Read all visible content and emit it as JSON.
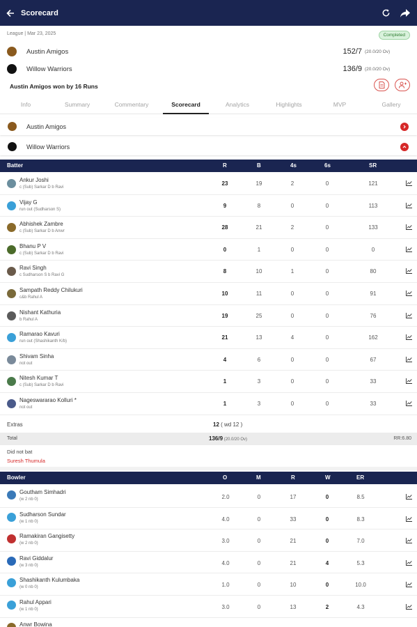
{
  "appbar": {
    "title": "Scorecard",
    "back_icon": "arrow-left-icon",
    "refresh_icon": "refresh-icon",
    "share_icon": "share-icon"
  },
  "match": {
    "meta": "League | Mar 23, 2025",
    "status": "Completed",
    "teams": [
      {
        "name": "Austin Amigos",
        "score": "152/7",
        "overs": "(20.0/20 Ov)",
        "logo_color": "#8a5a1e"
      },
      {
        "name": "Willow Warriors",
        "score": "136/9",
        "overs": "(20.0/20 Ov)",
        "logo_color": "#111111"
      }
    ],
    "result": "Austin Amigos won by 16 Runs"
  },
  "tabs": [
    "Info",
    "Summary",
    "Commentary",
    "Scorecard",
    "Analytics",
    "Highlights",
    "MVP",
    "Gallery"
  ],
  "active_tab": "Scorecard",
  "innings": [
    {
      "name": "Austin Amigos",
      "state": "collapsed"
    },
    {
      "name": "Willow Warriors",
      "state": "expanded"
    }
  ],
  "batting": {
    "headers": {
      "batter": "Batter",
      "r": "R",
      "b": "B",
      "fours": "4s",
      "sixes": "6s",
      "sr": "SR"
    },
    "rows": [
      {
        "name": "Ankur Joshi",
        "dismissal": "c (Sub) Sarkar D b Ravi",
        "r": "23",
        "b": "19",
        "fours": "2",
        "sixes": "0",
        "sr": "121",
        "avatar": "#6b8e9e"
      },
      {
        "name": "Vijay G",
        "dismissal": "run out (Sudharson S)",
        "r": "9",
        "b": "8",
        "fours": "0",
        "sixes": "0",
        "sr": "113",
        "avatar": "#3aa0d8"
      },
      {
        "name": "Abhishek Zambre",
        "dismissal": "c (Sub) Sarkar D b Anwr",
        "r": "28",
        "b": "21",
        "fours": "2",
        "sixes": "0",
        "sr": "133",
        "avatar": "#8a6a2a"
      },
      {
        "name": "Bhanu P V",
        "dismissal": "c (Sub) Sarkar D b Ravi",
        "r": "0",
        "b": "1",
        "fours": "0",
        "sixes": "0",
        "sr": "0",
        "avatar": "#4b6b2a"
      },
      {
        "name": "Ravi Singh",
        "dismissal": "c Sudharson S b Ravi G",
        "r": "8",
        "b": "10",
        "fours": "1",
        "sixes": "0",
        "sr": "80",
        "avatar": "#6a5a4a"
      },
      {
        "name": "Sampath Reddy Chilukuri",
        "dismissal": "c&b Rahul A",
        "r": "10",
        "b": "11",
        "fours": "0",
        "sixes": "0",
        "sr": "91",
        "avatar": "#7a6a3a"
      },
      {
        "name": "Nishant Kathuria",
        "dismissal": "b Rahul A",
        "r": "19",
        "b": "25",
        "fours": "0",
        "sixes": "0",
        "sr": "76",
        "avatar": "#5a5a5a"
      },
      {
        "name": "Ramarao Kavuri",
        "dismissal": "run out (Shashikanth K/b)",
        "r": "21",
        "b": "13",
        "fours": "4",
        "sixes": "0",
        "sr": "162",
        "avatar": "#3aa0d8"
      },
      {
        "name": "Shivam Sinha",
        "dismissal": "not out",
        "r": "4",
        "b": "6",
        "fours": "0",
        "sixes": "0",
        "sr": "67",
        "avatar": "#7a8a9a"
      },
      {
        "name": "Nitesh Kumar T",
        "dismissal": "c (Sub) Sarkar D b Ravi",
        "r": "1",
        "b": "3",
        "fours": "0",
        "sixes": "0",
        "sr": "33",
        "avatar": "#4a7a4a"
      },
      {
        "name": "Nageswararao Kolluri *",
        "dismissal": "not out",
        "r": "1",
        "b": "3",
        "fours": "0",
        "sixes": "0",
        "sr": "33",
        "avatar": "#4a5a8a"
      }
    ],
    "extras_label": "Extras",
    "extras_total": "12",
    "extras_detail": " ( wd 12 )",
    "total_label": "Total",
    "total_score": "136/9",
    "total_overs": " (20.0/20 Ov)",
    "run_rate": "RR:6.80",
    "dnb_label": "Did not bat",
    "dnb_names": "Suresh Thumula"
  },
  "bowling": {
    "headers": {
      "bowler": "Bowler",
      "o": "O",
      "m": "M",
      "r": "R",
      "w": "W",
      "er": "ER"
    },
    "rows": [
      {
        "name": "Goutham Simhadri",
        "extras": "(w 2 nb 0)",
        "o": "2.0",
        "m": "0",
        "r": "17",
        "w": "0",
        "er": "8.5",
        "avatar": "#3a7ab8"
      },
      {
        "name": "Sudharson Sundar",
        "extras": "(w 1 nb 0)",
        "o": "4.0",
        "m": "0",
        "r": "33",
        "w": "0",
        "er": "8.3",
        "avatar": "#3aa0d8"
      },
      {
        "name": "Ramakiran Gangisetty",
        "extras": "(w 2 nb 0)",
        "o": "3.0",
        "m": "0",
        "r": "21",
        "w": "0",
        "er": "7.0",
        "avatar": "#c03030"
      },
      {
        "name": "Ravi Giddalur",
        "extras": "(w 3 nb 0)",
        "o": "4.0",
        "m": "0",
        "r": "21",
        "w": "4",
        "er": "5.3",
        "avatar": "#2a6ab8"
      },
      {
        "name": "Shashikanth Kulumbaka",
        "extras": "(w 0 nb 0)",
        "o": "1.0",
        "m": "0",
        "r": "10",
        "w": "0",
        "er": "10.0",
        "avatar": "#3aa0d8"
      },
      {
        "name": "Rahul Appari",
        "extras": "(w 1 nb 0)",
        "o": "3.0",
        "m": "0",
        "r": "13",
        "w": "2",
        "er": "4.3",
        "avatar": "#3aa0d8"
      },
      {
        "name": "Anwr Bowina",
        "extras": "",
        "o": "",
        "m": "",
        "r": "",
        "w": "",
        "er": "",
        "avatar": "#8a6a2a"
      }
    ]
  },
  "icons": {
    "row_chart": "chart-line-icon",
    "scorecard_doc": "document-icon",
    "players": "team-icon"
  },
  "colors": {
    "navy": "#1a2551",
    "accent_red": "#d62828",
    "status_green": "#2e7d32"
  }
}
